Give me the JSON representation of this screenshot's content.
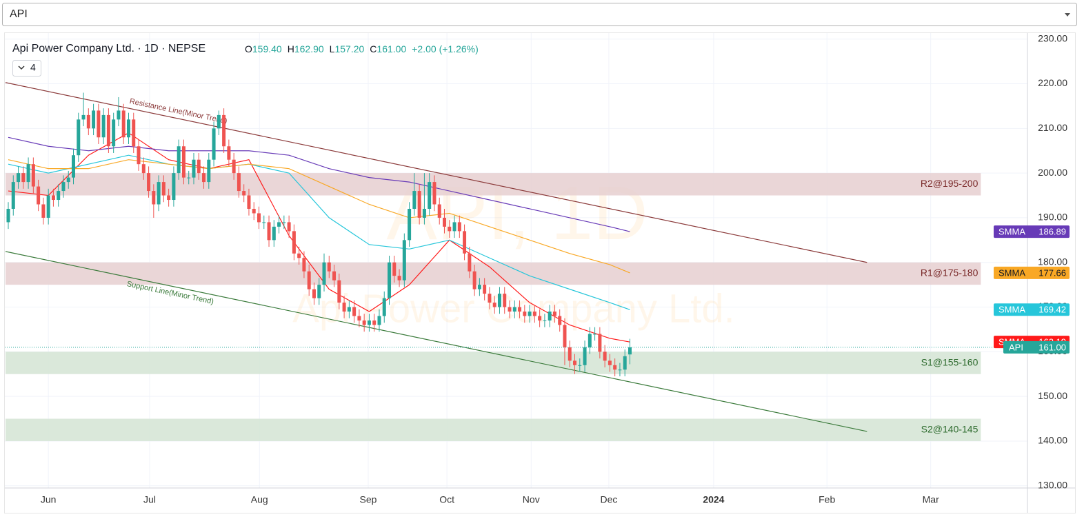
{
  "selector": "API",
  "chart_data": {
    "type": "candlestick",
    "title": "Api Power Company Ltd. · 1D · NEPSE",
    "legend": [
      {
        "key": "O",
        "value": "159.40"
      },
      {
        "key": "H",
        "value": "162.90"
      },
      {
        "key": "L",
        "value": "157.20"
      },
      {
        "key": "C",
        "value": "161.00"
      }
    ],
    "change": "+2.00 (+1.26%)",
    "indicator_count": "4",
    "watermark": [
      "API, 1D",
      "Api Power Company Ltd."
    ],
    "up_color": "#26a69a",
    "down_color": "#ef5350",
    "x": [
      0,
      1,
      2,
      3,
      4,
      5,
      6,
      7,
      8,
      9,
      10,
      11,
      12,
      13,
      14,
      15,
      16,
      17,
      18,
      19,
      20,
      21,
      22,
      23,
      24,
      25,
      26,
      27,
      28,
      29,
      30,
      31,
      32,
      33,
      34,
      35,
      36,
      37,
      38,
      39,
      40,
      41,
      42,
      43,
      44,
      45,
      46,
      47,
      48,
      49,
      50,
      51,
      52,
      53,
      54,
      55,
      56,
      57,
      58,
      59,
      60,
      61,
      62,
      63,
      64,
      65,
      66,
      67,
      68,
      69,
      70,
      71,
      72,
      73,
      74,
      75,
      76,
      77,
      78,
      79,
      80,
      81,
      82,
      83,
      84,
      85,
      86,
      87,
      88,
      89,
      90,
      91,
      92,
      93,
      94,
      95,
      96,
      97,
      98,
      99,
      100,
      101,
      102,
      103,
      104,
      105,
      106,
      107,
      108,
      109,
      110,
      111,
      112,
      113,
      114,
      115,
      116,
      117,
      118,
      119,
      120,
      121,
      122,
      123,
      124
    ],
    "open": [
      189,
      192,
      198,
      200,
      198,
      202,
      197,
      193,
      190,
      195,
      194,
      196,
      198,
      199,
      204,
      212,
      213,
      210,
      214,
      208,
      213,
      206,
      212,
      214,
      208,
      212,
      206,
      202,
      200,
      196,
      193,
      198,
      195,
      194,
      200,
      206,
      199,
      199,
      203,
      200,
      198,
      203,
      210,
      213,
      206,
      203,
      200,
      196,
      195,
      192,
      191,
      189,
      189,
      185,
      188,
      189,
      189,
      187,
      182,
      181,
      178,
      174,
      172,
      175,
      180,
      178,
      176,
      171,
      169,
      170,
      168,
      167,
      166,
      167,
      166,
      168,
      172,
      180,
      177,
      176,
      185,
      192,
      196,
      190,
      192,
      198,
      193,
      190,
      188,
      187,
      189,
      187,
      182,
      178,
      174,
      175,
      173,
      171,
      170,
      173,
      170,
      169,
      170,
      169,
      168,
      169,
      168,
      167,
      167,
      169,
      168,
      166,
      161,
      158,
      157,
      157,
      161,
      164,
      164,
      160,
      158,
      157,
      156,
      156,
      159.4
    ],
    "high": [
      193.5,
      199.5,
      201.5,
      201.5,
      203.5,
      203.5,
      198.5,
      194.5,
      196.5,
      196.5,
      197.5,
      199.5,
      200.5,
      205.5,
      213.5,
      218,
      214.5,
      215.5,
      215.5,
      214.5,
      214.5,
      213.5,
      217,
      215.5,
      213.5,
      213.5,
      207.5,
      203.5,
      201.5,
      197.5,
      199.5,
      199.5,
      196.5,
      201.5,
      207.5,
      207.5,
      200.5,
      204.5,
      204.5,
      201.5,
      204.5,
      211.5,
      214,
      214.5,
      207.5,
      204.5,
      201.5,
      197.5,
      196.5,
      193.5,
      192.5,
      190.5,
      190.5,
      189.5,
      190.5,
      190.5,
      190.5,
      188.5,
      183.5,
      182.5,
      179.5,
      175.5,
      176.5,
      182,
      181.5,
      179.5,
      177.5,
      172.5,
      171.5,
      171.5,
      169.5,
      168.5,
      168.5,
      168.5,
      169.5,
      173.5,
      181.5,
      181.5,
      178.5,
      186.5,
      193.5,
      200,
      197.5,
      200,
      200,
      199.5,
      194.5,
      192,
      189.5,
      190.5,
      190.5,
      188.5,
      183.5,
      179.5,
      176.5,
      176.5,
      174.5,
      172.5,
      174.5,
      174.5,
      171.5,
      171.5,
      171.5,
      170.5,
      170.5,
      170.5,
      169.5,
      168.5,
      170.5,
      170.5,
      169.5,
      167.5,
      162.5,
      159.5,
      158.5,
      162.5,
      165.5,
      165.5,
      165.5,
      161.5,
      159.5,
      158.5,
      157.5,
      160.5,
      162.9
    ],
    "low": [
      187.5,
      190.5,
      196.5,
      196.5,
      196.5,
      195.5,
      191.5,
      188.5,
      188.5,
      192.5,
      192.5,
      194.5,
      196.5,
      197.5,
      202.5,
      210.5,
      208.5,
      208.5,
      206.5,
      206.5,
      204.5,
      204.5,
      210.5,
      206.5,
      206.5,
      204.5,
      200.5,
      198.5,
      194.5,
      190,
      191.5,
      193.5,
      192.5,
      192.5,
      198.5,
      197.5,
      197.5,
      197.5,
      198.5,
      196.5,
      196.5,
      201.5,
      208.5,
      204.5,
      201.5,
      198.5,
      194.5,
      193.5,
      190.5,
      189.5,
      187.5,
      187.5,
      183.5,
      183.5,
      186.5,
      187.5,
      185.5,
      180.5,
      179.5,
      176.5,
      172.5,
      170.5,
      170.5,
      173.5,
      176.5,
      174.5,
      169.5,
      167.5,
      167.5,
      166.5,
      165.5,
      164.5,
      164.5,
      164.5,
      164.5,
      166.5,
      170.5,
      175.5,
      174.5,
      174.5,
      183.5,
      190.5,
      188.5,
      188.5,
      190.5,
      191.5,
      188.5,
      186.5,
      185.5,
      185.5,
      185.5,
      180.5,
      176.5,
      172.5,
      172.5,
      171.5,
      169.5,
      168.5,
      168.5,
      168.5,
      167.5,
      167.5,
      167.5,
      166.5,
      166.5,
      166.5,
      165.5,
      165.5,
      165.5,
      166.5,
      164.5,
      157,
      156.5,
      155,
      155.5,
      155.5,
      159.5,
      162.5,
      158.5,
      156.5,
      155.5,
      154.5,
      154.5,
      154.5,
      157.2
    ],
    "close": [
      192,
      198,
      200,
      198,
      202,
      197,
      193,
      190,
      195,
      194,
      196,
      198,
      199,
      204,
      212,
      213,
      210,
      214,
      208,
      213,
      206,
      212,
      214,
      208,
      212,
      206,
      202,
      200,
      196,
      193,
      198,
      195,
      194,
      200,
      206,
      199,
      199,
      203,
      200,
      198,
      203,
      210,
      213,
      206,
      203,
      200,
      196,
      195,
      192,
      191,
      189,
      189,
      185,
      188,
      189,
      189,
      187,
      182,
      181,
      178,
      174,
      172,
      175,
      180,
      178,
      176,
      171,
      169,
      170,
      168,
      167,
      166,
      167,
      166,
      168,
      172,
      180,
      177,
      176,
      185,
      192,
      196,
      190,
      192,
      198,
      193,
      190,
      188,
      187,
      189,
      187,
      182,
      178,
      174,
      175,
      173,
      171,
      170,
      173,
      170,
      169,
      170,
      169,
      168,
      169,
      168,
      167,
      167,
      169,
      168,
      166,
      161,
      158,
      157,
      157,
      161,
      164,
      164,
      160,
      158,
      157,
      156,
      156,
      159,
      161
    ],
    "last_price": {
      "name": "API",
      "label": "161.00",
      "color": "#26a69a"
    },
    "lines": [
      {
        "name": "SMMA",
        "color": "#ff1a1a",
        "x": [
          0,
          8,
          16,
          24,
          32,
          40,
          48,
          56,
          64,
          72,
          80,
          88,
          96,
          104,
          112,
          120,
          124
        ],
        "values": [
          196,
          195,
          204,
          209,
          203,
          201,
          203,
          186,
          174,
          169,
          175,
          185,
          179,
          171,
          166,
          163,
          162.19
        ],
        "last_label": "162.19"
      },
      {
        "name": "SMMA",
        "color": "#26c6da",
        "x": [
          0,
          8,
          16,
          24,
          32,
          40,
          48,
          56,
          64,
          72,
          80,
          88,
          96,
          104,
          112,
          120,
          124
        ],
        "values": [
          202,
          200,
          202,
          204,
          202,
          201,
          202,
          200,
          190,
          184,
          183,
          185,
          181,
          177,
          174,
          171,
          169.42
        ],
        "last_label": "169.42"
      },
      {
        "name": "SMMA",
        "color": "#f9a825",
        "x": [
          0,
          8,
          16,
          24,
          32,
          40,
          48,
          56,
          64,
          72,
          80,
          88,
          96,
          104,
          112,
          120,
          124
        ],
        "values": [
          203,
          201,
          201,
          203,
          202,
          201,
          202,
          201,
          197,
          193,
          190,
          191,
          188,
          185,
          182,
          179.5,
          177.66
        ],
        "last_label": "177.66"
      },
      {
        "name": "SMMA",
        "color": "#673ab7",
        "x": [
          0,
          8,
          16,
          24,
          32,
          40,
          48,
          56,
          64,
          72,
          80,
          88,
          96,
          104,
          112,
          120,
          124
        ],
        "values": [
          208,
          206,
          205,
          206,
          205,
          205,
          205,
          204,
          201,
          199,
          198,
          196,
          194,
          192,
          190,
          188,
          186.89
        ],
        "last_label": "186.89"
      }
    ],
    "zones": [
      {
        "label": "R2@195-200",
        "range": [
          195,
          200
        ],
        "x": [
          -0.55,
          194
        ],
        "color": "#e6cfd0",
        "text_color": "#7a2a2a"
      },
      {
        "label": "R1@175-180",
        "range": [
          175,
          180
        ],
        "x": [
          -0.55,
          194
        ],
        "color": "#e6cfd0",
        "text_color": "#7a2a2a"
      },
      {
        "label": "S1@155-160",
        "range": [
          155,
          160
        ],
        "x": [
          -0.55,
          194
        ],
        "color": "#d3e4d3",
        "text_color": "#2e6b2e"
      },
      {
        "label": "S2@140-145",
        "range": [
          140,
          145
        ],
        "x": [
          -0.55,
          194
        ],
        "color": "#d3e4d3",
        "text_color": "#2e6b2e"
      }
    ],
    "trendlines": [
      {
        "label": "Resistance Line(Minor Trend)",
        "x": [
          -0.55,
          171.3
        ],
        "values": [
          220.27,
          180
        ],
        "color": "#8b3a3a"
      },
      {
        "label": "Support Line(Minor Trend)",
        "x": [
          -0.55,
          171.3
        ],
        "values": [
          182.45,
          142.16
        ],
        "color": "#3a7a3a"
      }
    ],
    "xlim": [
      -0.55,
      203.3
    ],
    "xticks": [
      {
        "value": 8,
        "label": "Jun"
      },
      {
        "value": 28.2,
        "label": "Jul"
      },
      {
        "value": 50.1,
        "label": "Aug"
      },
      {
        "value": 71.8,
        "label": "Sep"
      },
      {
        "value": 87.5,
        "label": "Oct"
      },
      {
        "value": 104.3,
        "label": "Nov"
      },
      {
        "value": 119.8,
        "label": "Dec"
      },
      {
        "value": 140.7,
        "label": "2024"
      },
      {
        "value": 163.3,
        "label": "Feb"
      },
      {
        "value": 184,
        "label": "Mar"
      }
    ],
    "ylim": [
      129.5,
      231.5
    ],
    "yticks": [
      {
        "value": 130,
        "label": "130.00"
      },
      {
        "value": 140,
        "label": "140.00"
      },
      {
        "value": 150,
        "label": "150.00"
      },
      {
        "value": 160,
        "label": "160.00"
      },
      {
        "value": 170,
        "label": "170.00"
      },
      {
        "value": 180,
        "label": "180.00"
      },
      {
        "value": 190,
        "label": "190.00"
      },
      {
        "value": 200,
        "label": "200.00"
      },
      {
        "value": 210,
        "label": "210.00"
      },
      {
        "value": 220,
        "label": "220.00"
      },
      {
        "value": 230,
        "label": "230.00"
      }
    ],
    "grid": true
  }
}
